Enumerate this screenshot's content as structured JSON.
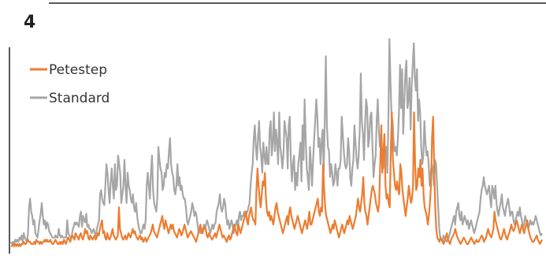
{
  "panel_label": "4",
  "chart_data": {
    "type": "line",
    "title": "",
    "xlabel": "",
    "ylabel": "",
    "legend_position": "top-left",
    "grid": false,
    "axes_visible": false,
    "ylim": [
      0,
      100
    ],
    "series": [
      {
        "name": "Standard",
        "color": "#a6a6a6",
        "values": [
          4,
          3,
          4,
          3,
          5,
          4,
          5,
          4,
          6,
          5,
          7,
          4,
          8,
          6,
          5,
          4,
          8,
          20,
          24,
          18,
          16,
          12,
          14,
          8,
          7,
          6,
          10,
          14,
          17,
          22,
          16,
          12,
          14,
          10,
          13,
          12,
          9,
          8,
          7,
          6,
          6,
          6,
          7,
          6,
          6,
          10,
          7,
          6,
          7,
          6,
          6,
          6,
          6,
          14,
          8,
          7,
          6,
          6,
          9,
          11,
          13,
          12,
          13,
          12,
          11,
          16,
          18,
          11,
          16,
          14,
          13,
          17,
          11,
          12,
          10,
          10,
          8,
          9,
          10,
          8,
          7,
          10,
          12,
          14,
          26,
          28,
          24,
          22,
          21,
          30,
          40,
          36,
          28,
          22,
          32,
          38,
          30,
          24,
          40,
          28,
          30,
          44,
          40,
          36,
          22,
          26,
          30,
          42,
          30,
          22,
          36,
          30,
          28,
          24,
          22,
          26,
          20,
          18,
          22,
          16,
          12,
          10,
          8,
          8,
          10,
          12,
          10,
          14,
          30,
          36,
          30,
          24,
          36,
          44,
          28,
          22,
          20,
          18,
          24,
          48,
          42,
          38,
          36,
          28,
          30,
          36,
          34,
          40,
          38,
          46,
          52,
          40,
          36,
          34,
          28,
          26,
          30,
          40,
          30,
          34,
          28,
          30,
          26,
          24,
          24,
          20,
          14,
          12,
          14,
          16,
          18,
          22,
          20,
          16,
          18,
          16,
          12,
          8,
          10,
          8,
          8,
          10,
          12,
          10,
          12,
          14,
          12,
          10,
          8,
          10,
          12,
          10,
          12,
          13,
          18,
          20,
          22,
          26,
          20,
          18,
          20,
          24,
          22,
          16,
          12,
          14,
          10,
          12,
          14,
          12,
          8,
          11,
          12,
          14,
          10,
          16,
          18,
          14,
          16,
          16,
          18,
          16,
          17,
          18,
          20,
          22,
          30,
          36,
          40,
          52,
          58,
          48,
          42,
          52,
          60,
          48,
          44,
          36,
          50,
          44,
          40,
          48,
          40,
          40,
          56,
          60,
          44,
          50,
          64,
          46,
          56,
          50,
          40,
          64,
          48,
          44,
          38,
          44,
          60,
          56,
          52,
          38,
          58,
          62,
          42,
          32,
          40,
          44,
          28,
          36,
          30,
          40,
          44,
          50,
          32,
          58,
          42,
          70,
          52,
          38,
          34,
          28,
          48,
          40,
          30,
          42,
          52,
          60,
          70,
          62,
          48,
          52,
          40,
          50,
          56,
          36,
          60,
          90,
          58,
          48,
          46,
          34,
          40,
          36,
          30,
          32,
          40,
          36,
          30,
          38,
          38,
          42,
          62,
          54,
          46,
          40,
          38,
          40,
          52,
          46,
          34,
          30,
          38,
          42,
          58,
          50,
          42,
          38,
          44,
          56,
          82,
          60,
          54,
          42,
          58,
          70,
          66,
          48,
          52,
          62,
          64,
          48,
          34,
          40,
          44,
          60,
          70,
          56,
          48,
          52,
          42,
          38,
          40,
          46,
          48,
          36,
          60,
          98,
          78,
          62,
          60,
          50,
          46,
          48,
          44,
          52,
          64,
          86,
          66,
          84,
          54,
          68,
          82,
          88,
          66,
          70,
          80,
          56,
          76,
          86,
          96,
          80,
          74,
          84,
          60,
          70,
          64,
          48,
          40,
          44,
          60,
          50,
          44,
          46,
          40,
          30,
          36,
          40,
          38,
          30,
          42,
          40,
          30,
          20,
          10,
          6,
          5,
          4,
          7,
          6,
          5,
          4,
          5,
          6,
          8,
          10,
          12,
          14,
          16,
          12,
          18,
          20,
          22,
          16,
          14,
          18,
          12,
          14,
          16,
          14,
          12,
          14,
          10,
          12,
          14,
          12,
          10,
          8,
          10,
          12,
          14,
          16,
          18,
          24,
          28,
          30,
          34,
          30,
          28,
          26,
          28,
          30,
          24,
          20,
          30,
          28,
          24,
          30,
          22,
          18,
          16,
          20,
          22,
          26,
          20,
          18,
          16,
          20,
          22,
          24,
          20,
          16,
          18,
          18,
          14,
          12,
          14,
          16,
          18,
          16,
          20,
          16,
          14,
          10,
          12,
          16,
          14,
          12,
          10,
          12,
          14,
          12,
          13,
          12,
          14,
          16,
          14,
          12,
          10,
          8,
          7,
          8
        ]
      },
      {
        "name": "Petestep",
        "color": "#ec7d31",
        "values": [
          2,
          2,
          3,
          2,
          3,
          2,
          3,
          2,
          3,
          2,
          3,
          3,
          4,
          3,
          3,
          4,
          5,
          4,
          4,
          3,
          3,
          3,
          4,
          3,
          5,
          4,
          4,
          3,
          4,
          3,
          4,
          4,
          5,
          4,
          5,
          4,
          4,
          5,
          4,
          3,
          3,
          4,
          5,
          4,
          3,
          3,
          4,
          3,
          4,
          3,
          5,
          4,
          3,
          5,
          6,
          5,
          4,
          6,
          7,
          6,
          5,
          8,
          7,
          6,
          5,
          7,
          8,
          6,
          5,
          7,
          10,
          8,
          9,
          6,
          5,
          7,
          6,
          5,
          6,
          7,
          5,
          6,
          8,
          7,
          10,
          12,
          14,
          8,
          9,
          6,
          5,
          8,
          6,
          5,
          6,
          8,
          10,
          7,
          6,
          5,
          6,
          7,
          20,
          10,
          8,
          6,
          5,
          6,
          7,
          5,
          6,
          8,
          7,
          6,
          8,
          10,
          8,
          9,
          7,
          6,
          5,
          6,
          7,
          5,
          6,
          4,
          5,
          6,
          4,
          5,
          6,
          7,
          8,
          10,
          12,
          9,
          8,
          7,
          6,
          8,
          10,
          12,
          14,
          16,
          12,
          10,
          14,
          12,
          10,
          8,
          10,
          12,
          10,
          12,
          9,
          8,
          7,
          6,
          8,
          10,
          9,
          7,
          8,
          10,
          12,
          10,
          8,
          6,
          7,
          8,
          9,
          8,
          7,
          6,
          5,
          4,
          6,
          8,
          10,
          12,
          9,
          8,
          10,
          11,
          10,
          7,
          6,
          8,
          7,
          6,
          5,
          6,
          7,
          8,
          6,
          8,
          10,
          12,
          10,
          8,
          6,
          7,
          6,
          5,
          4,
          6,
          7,
          5,
          6,
          8,
          10,
          12,
          10,
          8,
          7,
          12,
          10,
          8,
          10,
          12,
          14,
          16,
          18,
          14,
          12,
          16,
          18,
          20,
          16,
          14,
          14,
          12,
          28,
          38,
          30,
          24,
          20,
          26,
          32,
          30,
          36,
          24,
          18,
          16,
          18,
          14,
          16,
          14,
          12,
          16,
          20,
          22,
          18,
          16,
          14,
          12,
          10,
          8,
          10,
          12,
          14,
          16,
          12,
          18,
          20,
          16,
          14,
          12,
          10,
          12,
          14,
          16,
          14,
          12,
          10,
          8,
          10,
          12,
          14,
          12,
          10,
          14,
          18,
          12,
          12,
          14,
          16,
          18,
          20,
          22,
          24,
          18,
          16,
          20,
          18,
          40,
          28,
          20,
          16,
          14,
          12,
          10,
          8,
          10,
          12,
          10,
          14,
          12,
          10,
          8,
          6,
          8,
          10,
          12,
          10,
          8,
          10,
          12,
          14,
          12,
          16,
          14,
          12,
          10,
          12,
          14,
          16,
          20,
          24,
          20,
          18,
          22,
          26,
          34,
          22,
          18,
          16,
          12,
          16,
          20,
          24,
          28,
          30,
          28,
          26,
          22,
          20,
          18,
          22,
          40,
          58,
          36,
          46,
          54,
          30,
          24,
          26,
          22,
          20,
          46,
          64,
          42,
          36,
          30,
          28,
          32,
          28,
          26,
          40,
          36,
          28,
          24,
          20,
          16,
          20,
          24,
          30,
          26,
          22,
          24,
          30,
          64,
          40,
          28,
          30,
          38,
          34,
          42,
          30,
          38,
          26,
          20,
          18,
          16,
          12,
          16,
          22,
          30,
          52,
          62,
          40,
          20,
          10,
          6,
          5,
          4,
          6,
          5,
          4,
          3,
          5,
          6,
          8,
          5,
          4,
          3,
          5,
          6,
          7,
          8,
          10,
          8,
          6,
          5,
          4,
          3,
          4,
          5,
          6,
          5,
          4,
          3,
          3,
          4,
          5,
          6,
          5,
          4,
          3,
          4,
          5,
          4,
          4,
          5,
          6,
          7,
          6,
          4,
          5,
          6,
          8,
          10,
          8,
          7,
          6,
          8,
          10,
          18,
          14,
          12,
          10,
          8,
          6,
          5,
          6,
          8,
          10,
          8,
          6,
          5,
          7,
          8,
          10,
          12,
          10,
          9,
          10,
          12,
          14,
          12,
          10,
          8,
          10,
          12,
          10,
          8,
          10,
          12,
          14,
          10,
          8,
          6,
          5,
          4,
          4,
          5,
          6,
          7,
          5,
          4,
          3,
          4,
          5
        ]
      }
    ]
  }
}
